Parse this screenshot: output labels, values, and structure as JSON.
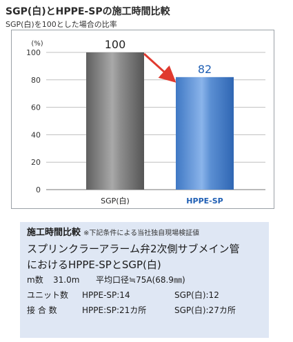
{
  "header": {
    "title": "SGP(白)とHPPE-SPの施工時間比較",
    "subtitle": "SGP(白)を100とした場合の比率"
  },
  "chart_data": {
    "type": "bar",
    "categories": [
      "SGP(白)",
      "HPPE-SP"
    ],
    "values": [
      100,
      82
    ],
    "value_labels": [
      "100",
      "82"
    ],
    "ylabel": "(%)",
    "ylim": [
      0,
      100
    ],
    "yticks": [
      0,
      20,
      40,
      60,
      80,
      100
    ],
    "grid": true,
    "colors": {
      "sgp_bar": "#8c8c8c",
      "hppe_bar": "#5b8fd3",
      "hppe_label": "#1f5fb4",
      "arrow": "#e03a2f",
      "grid": "#bfbfbf"
    },
    "annotation": "arrow from SGP(白) bar to HPPE-SP bar"
  },
  "info": {
    "heading": "施工時間比較",
    "note": "※下記条件による当社独自現場検証値",
    "line1": "スプリンクラーアラーム弁2次側サブメイン管",
    "line2": "におけるHPPE-SPとSGP(白)",
    "rows": [
      {
        "label": "m数",
        "value": "31.0m",
        "extra": "平均口径≒75A(68.9㎜)"
      },
      {
        "label": "ユニット数",
        "value": "HPPE-SP:14",
        "extra": "SGP(白):12"
      },
      {
        "label": "接 合 数",
        "value": "HPPE:SP:21カ所",
        "extra": "SGP(白):27カ所"
      }
    ]
  }
}
